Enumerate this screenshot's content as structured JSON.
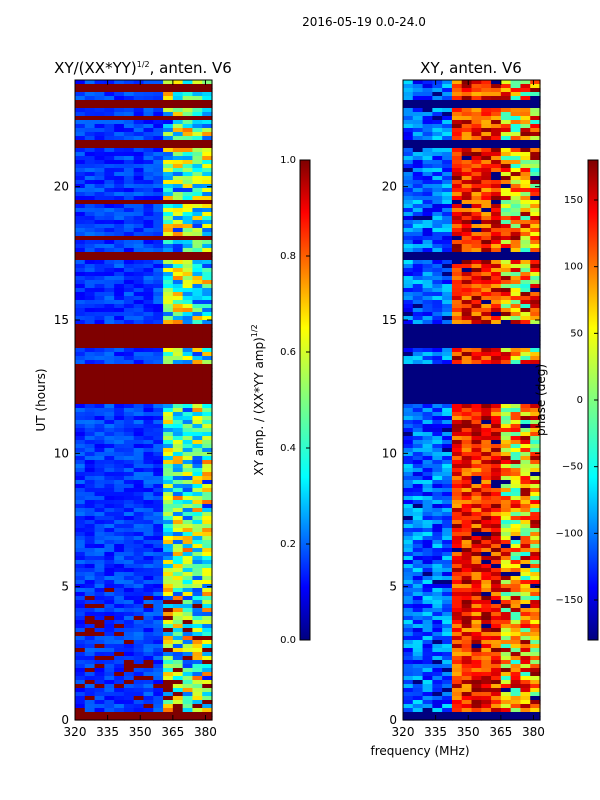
{
  "suptitle": "2016-05-19 0.0-24.0",
  "colors": {
    "jet": [
      "#00007f",
      "#0000ff",
      "#007fff",
      "#00ffff",
      "#7fff7f",
      "#ffff00",
      "#ff7f00",
      "#ff0000",
      "#7f0000"
    ],
    "saturated": "#7f0000",
    "masked": "#00007f"
  },
  "chart_data": [
    {
      "type": "heatmap",
      "title_main": "XY/(XX*YY)",
      "title_sup": "1/2",
      "title_rest": ", anten. V6",
      "xlabel": "",
      "ylabel": "UT (hours)",
      "xlim": [
        320,
        383
      ],
      "ylim": [
        0,
        24
      ],
      "xticks": [
        320,
        335,
        350,
        365,
        380
      ],
      "yticks": [
        0,
        5,
        10,
        15,
        20
      ],
      "saturated_bands_hours": [
        [
          0.0,
          0.25
        ],
        [
          11.8,
          13.4
        ],
        [
          14.0,
          14.8
        ],
        [
          17.3,
          17.5
        ],
        [
          18.0,
          18.2
        ],
        [
          19.3,
          19.5
        ],
        [
          21.5,
          21.7
        ],
        [
          22.5,
          22.6
        ],
        [
          23.0,
          23.2
        ],
        [
          23.6,
          23.8
        ]
      ],
      "colorbar": {
        "label_main": "XY amp. / (XX*YY amp)",
        "label_sup": "1/2",
        "vmin": 0.0,
        "vmax": 1.0,
        "ticks": [
          "0.0",
          "0.2",
          "0.4",
          "0.6",
          "0.8",
          "1.0"
        ]
      }
    },
    {
      "type": "heatmap",
      "title": "XY, anten. V6",
      "xlabel": "frequency (MHz)",
      "ylabel": "",
      "xlim": [
        320,
        383
      ],
      "ylim": [
        0,
        24
      ],
      "xticks": [
        320,
        335,
        350,
        365,
        380
      ],
      "yticks": [
        0,
        5,
        10,
        15,
        20
      ],
      "masked_bands_hours": [
        [
          0.0,
          0.25
        ],
        [
          11.8,
          13.4
        ],
        [
          14.0,
          14.8
        ],
        [
          17.3,
          17.5
        ],
        [
          21.5,
          21.7
        ],
        [
          23.0,
          23.2
        ]
      ],
      "colorbar": {
        "label": "phase (deg)",
        "vmin": -180,
        "vmax": 180,
        "ticks": [
          "−150",
          "−100",
          "−50",
          "0",
          "50",
          "100",
          "150"
        ],
        "tick_values": [
          -150,
          -100,
          -50,
          0,
          50,
          100,
          150
        ]
      }
    }
  ]
}
